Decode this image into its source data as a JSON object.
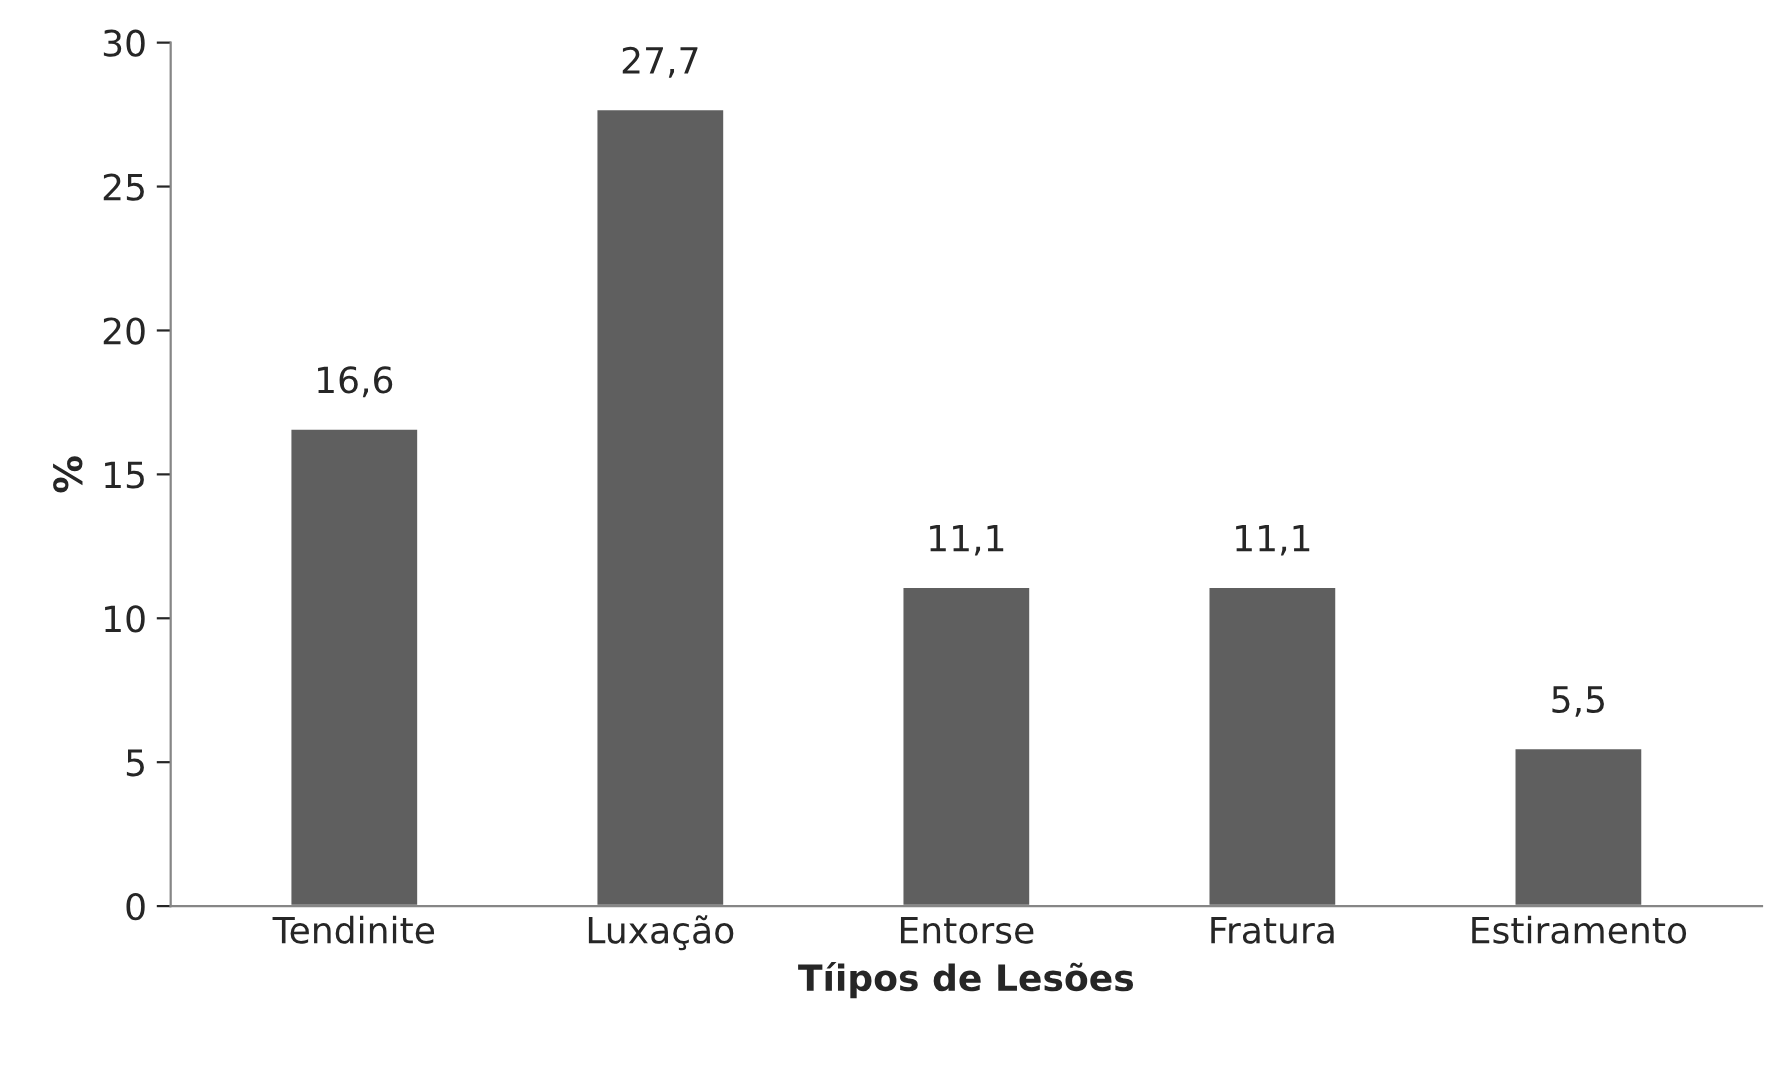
{
  "chart_data": {
    "type": "bar",
    "xlabel": "Tíipos de Lesões",
    "ylabel": "%",
    "categories": [
      "Tendinite",
      "Luxação",
      "Entorse",
      "Fratura",
      "Estiramento"
    ],
    "values": [
      16.6,
      27.7,
      11.1,
      11.1,
      5.5
    ],
    "value_labels": [
      "16,6",
      "27,7",
      "11,1",
      "11,1",
      "5,5"
    ],
    "color": "#5f5f5f",
    "ylim": [
      0,
      30
    ],
    "yticks": [
      0,
      5,
      10,
      15,
      20,
      25,
      30
    ],
    "grid": false,
    "legend": false
  }
}
